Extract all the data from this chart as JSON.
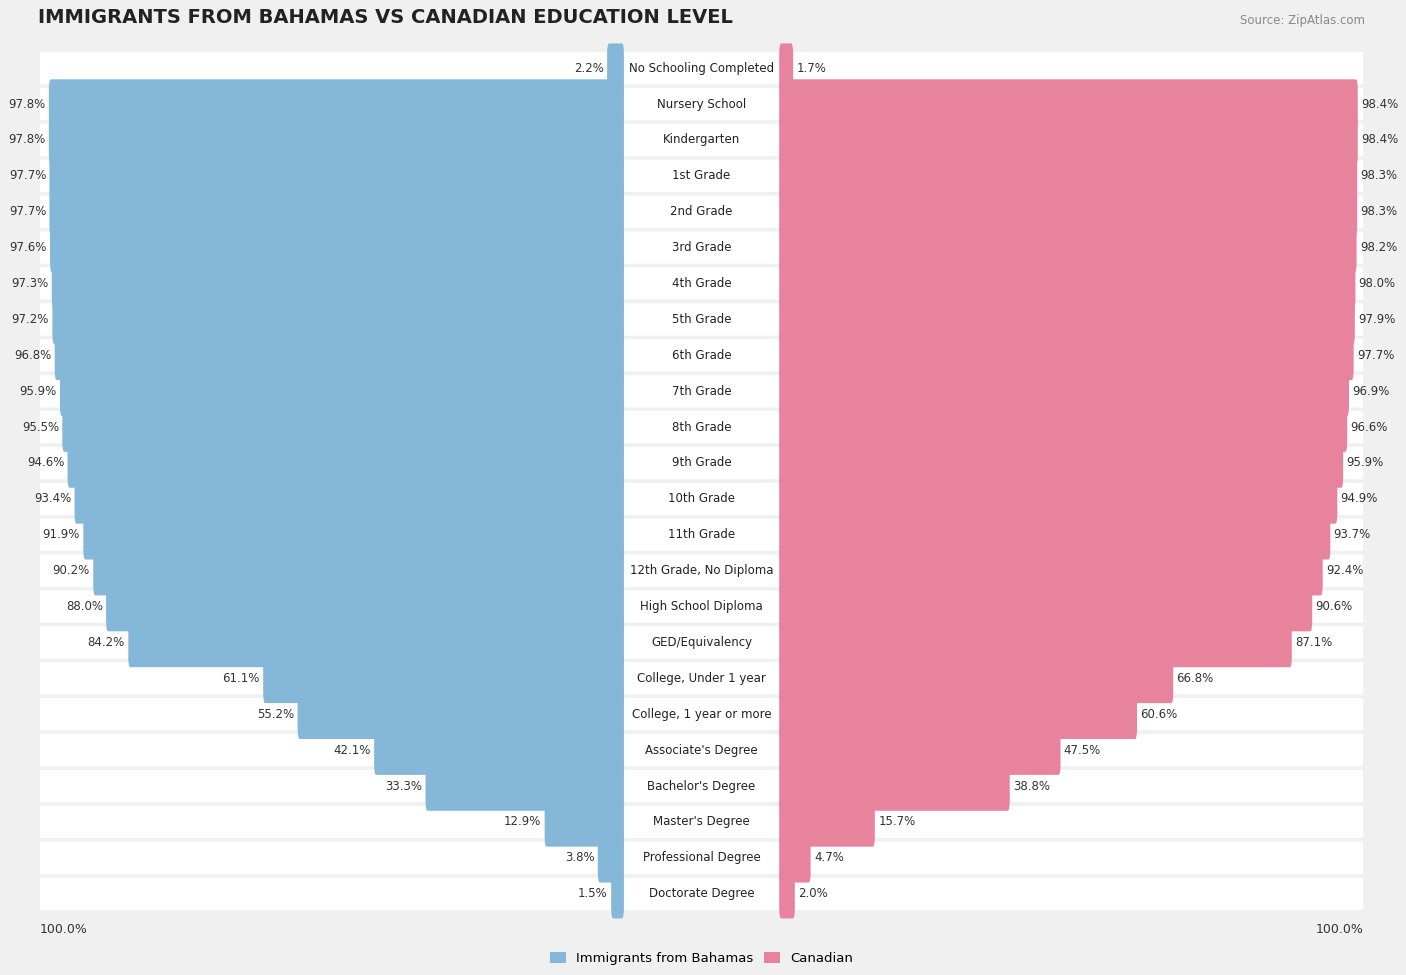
{
  "title": "IMMIGRANTS FROM BAHAMAS VS CANADIAN EDUCATION LEVEL",
  "source": "Source: ZipAtlas.com",
  "categories": [
    "No Schooling Completed",
    "Nursery School",
    "Kindergarten",
    "1st Grade",
    "2nd Grade",
    "3rd Grade",
    "4th Grade",
    "5th Grade",
    "6th Grade",
    "7th Grade",
    "8th Grade",
    "9th Grade",
    "10th Grade",
    "11th Grade",
    "12th Grade, No Diploma",
    "High School Diploma",
    "GED/Equivalency",
    "College, Under 1 year",
    "College, 1 year or more",
    "Associate's Degree",
    "Bachelor's Degree",
    "Master's Degree",
    "Professional Degree",
    "Doctorate Degree"
  ],
  "bahamas": [
    2.2,
    97.8,
    97.8,
    97.7,
    97.7,
    97.6,
    97.3,
    97.2,
    96.8,
    95.9,
    95.5,
    94.6,
    93.4,
    91.9,
    90.2,
    88.0,
    84.2,
    61.1,
    55.2,
    42.1,
    33.3,
    12.9,
    3.8,
    1.5
  ],
  "canadian": [
    1.7,
    98.4,
    98.4,
    98.3,
    98.3,
    98.2,
    98.0,
    97.9,
    97.7,
    96.9,
    96.6,
    95.9,
    94.9,
    93.7,
    92.4,
    90.6,
    87.1,
    66.8,
    60.6,
    47.5,
    38.8,
    15.7,
    4.7,
    2.0
  ],
  "bahamas_color": "#85b8d8",
  "canadian_color": "#e8839e",
  "background_color": "#f0f0f0",
  "bar_bg_color": "#ffffff",
  "row_bg_color": "#e8e8e8",
  "title_fontsize": 14,
  "label_fontsize": 8.5,
  "value_fontsize": 8.5
}
